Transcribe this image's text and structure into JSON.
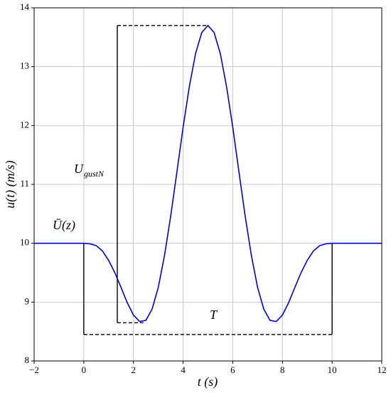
{
  "chart_data": {
    "type": "line",
    "x_label": "t (s)",
    "y_label": "u(t) (m/s)",
    "x": [
      -2,
      -1,
      0,
      0.25,
      0.5,
      0.75,
      1,
      1.25,
      1.5,
      1.75,
      2,
      2.25,
      2.5,
      2.75,
      3,
      3.25,
      3.5,
      3.75,
      4,
      4.25,
      4.5,
      4.75,
      5,
      5.25,
      5.5,
      5.75,
      6,
      6.25,
      6.5,
      6.75,
      7,
      7.25,
      7.5,
      7.75,
      8,
      8.25,
      8.5,
      8.75,
      9,
      9.25,
      9.5,
      9.75,
      10,
      11,
      12
    ],
    "series": [
      {
        "color": "#0000cc",
        "values": [
          10,
          10,
          10,
          9.99,
          9.96,
          9.87,
          9.71,
          9.5,
          9.25,
          8.99,
          8.78,
          8.67,
          8.69,
          8.88,
          9.25,
          9.79,
          10.46,
          11.21,
          11.97,
          12.66,
          13.22,
          13.58,
          13.7,
          13.58,
          13.22,
          12.66,
          11.97,
          11.21,
          10.46,
          9.79,
          9.25,
          8.88,
          8.69,
          8.67,
          8.78,
          8.99,
          9.25,
          9.5,
          9.71,
          9.87,
          9.96,
          9.99,
          10,
          10,
          10
        ]
      }
    ],
    "guides": [
      {
        "x": [
          0,
          0
        ],
        "y": [
          10,
          8.45
        ],
        "dashed": false,
        "color": "#000000"
      },
      {
        "x": [
          0,
          10
        ],
        "y": [
          8.45,
          8.45
        ],
        "dashed": true,
        "color": "#000000"
      },
      {
        "x": [
          10,
          10
        ],
        "y": [
          8.45,
          10
        ],
        "dashed": false,
        "color": "#000000"
      },
      {
        "x": [
          1.35,
          1.35
        ],
        "y": [
          8.65,
          13.7
        ],
        "dashed": false,
        "color": "#000000"
      },
      {
        "x": [
          1.35,
          5
        ],
        "y": [
          13.7,
          13.7
        ],
        "dashed": true,
        "color": "#000000"
      },
      {
        "x": [
          1.35,
          2.4
        ],
        "y": [
          8.65,
          8.65
        ],
        "dashed": true,
        "color": "#000000"
      }
    ],
    "annotations": [
      "U",
      "gustN",
      "Ū(z)",
      "T"
    ],
    "xlim": [
      -2,
      12
    ],
    "xticks": [
      {
        "value": -2,
        "label": "−2"
      },
      0,
      2,
      4,
      6,
      8,
      10,
      12
    ],
    "ylim": [
      8,
      14
    ],
    "yticks": [
      8,
      9,
      10,
      11,
      12,
      13,
      14
    ],
    "grid": true
  }
}
